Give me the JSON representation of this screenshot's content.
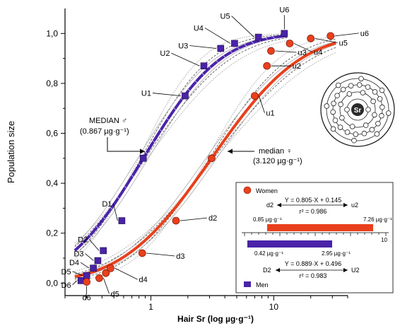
{
  "chart_data": {
    "type": "scatter",
    "x_scale": "log",
    "xlabel": "Hair Sr (log µg·g⁻¹)",
    "ylabel": "Population size",
    "xlim": [
      0.2,
      40
    ],
    "ylim": [
      -0.05,
      1.1
    ],
    "x_ticks": [
      {
        "value": 1,
        "label": "1"
      },
      {
        "value": 10,
        "label": "10"
      }
    ],
    "y_ticks": [
      {
        "value": 0.0,
        "label": "0,0"
      },
      {
        "value": 0.2,
        "label": "0,2"
      },
      {
        "value": 0.4,
        "label": "0,4"
      },
      {
        "value": 0.6,
        "label": "0,6"
      },
      {
        "value": 0.8,
        "label": "0,8"
      },
      {
        "value": 1.0,
        "label": "1,0"
      }
    ],
    "series": [
      {
        "name": "Men",
        "color": "#4a23a8",
        "marker": "square",
        "median_x": 0.867,
        "sigma": 0.496,
        "points": [
          {
            "label": "D6",
            "x": 0.27,
            "y": 0.01
          },
          {
            "label": "D5",
            "x": 0.3,
            "y": 0.03
          },
          {
            "label": "D4",
            "x": 0.34,
            "y": 0.06
          },
          {
            "label": "D3",
            "x": 0.37,
            "y": 0.09
          },
          {
            "label": "D2",
            "x": 0.41,
            "y": 0.13
          },
          {
            "label": "D1",
            "x": 0.58,
            "y": 0.25
          },
          {
            "label": "MEDIAN ♂",
            "x": 0.867,
            "y": 0.5
          },
          {
            "label": "U1",
            "x": 1.9,
            "y": 0.75
          },
          {
            "label": "U2",
            "x": 2.7,
            "y": 0.87
          },
          {
            "label": "U3",
            "x": 3.7,
            "y": 0.94
          },
          {
            "label": "U4",
            "x": 4.8,
            "y": 0.96
          },
          {
            "label": "U5",
            "x": 7.5,
            "y": 0.985
          },
          {
            "label": "U6",
            "x": 12.2,
            "y": 1.0
          }
        ]
      },
      {
        "name": "Women",
        "color": "#e8401c",
        "marker": "circle",
        "median_x": 3.12,
        "sigma": 0.57,
        "points": [
          {
            "label": "d6",
            "x": 0.3,
            "y": 0.005
          },
          {
            "label": "d5",
            "x": 0.38,
            "y": 0.02
          },
          {
            "label": "",
            "x": 0.43,
            "y": 0.04
          },
          {
            "label": "d4",
            "x": 0.47,
            "y": 0.06
          },
          {
            "label": "d3",
            "x": 0.85,
            "y": 0.12
          },
          {
            "label": "d2",
            "x": 1.6,
            "y": 0.25
          },
          {
            "label": "median ♀",
            "x": 3.12,
            "y": 0.5
          },
          {
            "label": "u1",
            "x": 7.0,
            "y": 0.75
          },
          {
            "label": "u2",
            "x": 8.8,
            "y": 0.87
          },
          {
            "label": "u3",
            "x": 9.5,
            "y": 0.93
          },
          {
            "label": "u4",
            "x": 13.5,
            "y": 0.96
          },
          {
            "label": "u5",
            "x": 20,
            "y": 0.98
          },
          {
            "label": "u6",
            "x": 29,
            "y": 0.99
          }
        ]
      }
    ],
    "annotations": {
      "median_men_title": "MEDIAN ♂",
      "median_men_value": "(0.867 µg·g⁻¹)",
      "median_women_title": "median ♀",
      "median_women_value": "(3.120 µg·g⁻¹)"
    }
  },
  "inset": {
    "women_label": "Women",
    "men_label": "Men",
    "women_equation": "Y = 0.805·X + 0.145",
    "women_r2": "r² = 0.986",
    "women_left": "d2",
    "women_right": "u2",
    "women_low": "0.85 µg·g⁻¹",
    "women_high": "7.26 µg·g⁻¹",
    "men_low": "0.42 µg·g⁻¹",
    "men_high": "2.95 µg·g⁻¹",
    "scale_tick": "10",
    "men_equation": "Y = 0.889·X + 0.496",
    "men_r2": "r² = 0.983",
    "men_left": "D2",
    "men_right": "U2"
  },
  "atom": {
    "symbol": "Sr"
  },
  "colors": {
    "men": "#4a23a8",
    "women": "#e8401c",
    "axis": "#000000"
  }
}
